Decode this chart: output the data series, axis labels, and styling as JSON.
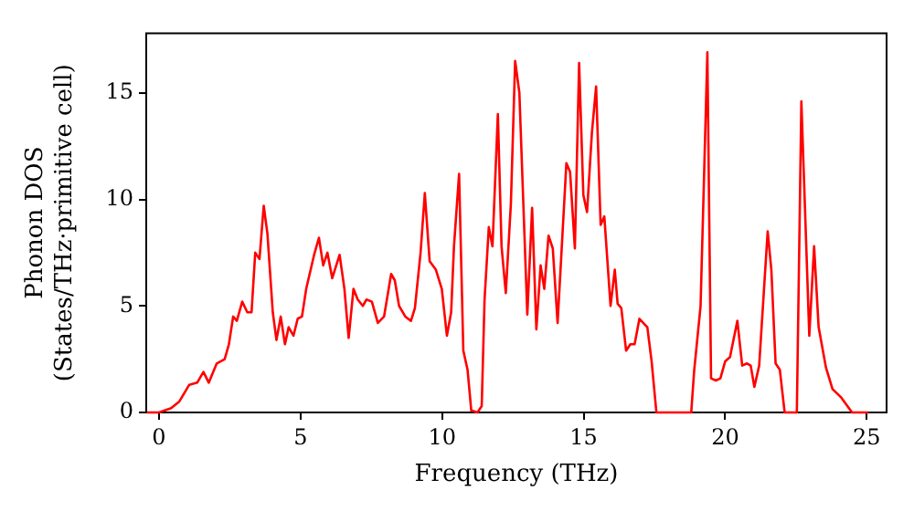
{
  "chart_data": {
    "type": "line",
    "xlabel": "Frequency (THz)",
    "ylabel": "Phonon DOS\n(States/THz·primitive cell)",
    "xlim": [
      -0.45,
      25.7
    ],
    "ylim": [
      0,
      17.8
    ],
    "xticks": [
      0,
      5,
      10,
      15,
      20,
      25
    ],
    "yticks": [
      0,
      5,
      10,
      15
    ],
    "grid": false,
    "legend": false,
    "marker": "none",
    "line_style": "solid",
    "series": [
      {
        "color": "#ff0000",
        "x": [
          -0.43,
          0,
          0.43,
          0.71,
          1.07,
          1.35,
          1.57,
          1.76,
          2.04,
          2.32,
          2.47,
          2.62,
          2.75,
          2.94,
          3.12,
          3.27,
          3.4,
          3.55,
          3.7,
          3.83,
          4.02,
          4.15,
          4.3,
          4.45,
          4.58,
          4.75,
          4.9,
          5.05,
          5.2,
          5.48,
          5.65,
          5.8,
          5.95,
          6.12,
          6.38,
          6.55,
          6.7,
          6.87,
          7.02,
          7.2,
          7.33,
          7.52,
          7.73,
          7.95,
          8.2,
          8.33,
          8.48,
          8.7,
          8.9,
          9.04,
          9.24,
          9.39,
          9.56,
          9.78,
          9.99,
          10.17,
          10.32,
          10.42,
          10.6,
          10.75,
          10.9,
          11.03,
          11.25,
          11.4,
          11.5,
          11.65,
          11.78,
          11.97,
          12.1,
          12.25,
          12.43,
          12.58,
          12.73,
          13.01,
          13.18,
          13.33,
          13.48,
          13.61,
          13.76,
          13.91,
          14.08,
          14.39,
          14.52,
          14.69,
          14.84,
          14.99,
          15.12,
          15.29,
          15.44,
          15.6,
          15.73,
          15.95,
          16.1,
          16.2,
          16.33,
          16.5,
          16.65,
          16.8,
          16.97,
          17.25,
          17.4,
          17.57,
          18.8,
          18.9,
          19.13,
          19.37,
          19.5,
          19.67,
          19.83,
          20.0,
          20.17,
          20.43,
          20.6,
          20.77,
          20.9,
          21.03,
          21.2,
          21.5,
          21.63,
          21.78,
          21.93,
          22.1,
          22.53,
          22.69,
          22.97,
          23.14,
          23.3,
          23.56,
          23.79,
          24.1,
          24.48,
          25.06
        ],
        "values": [
          0,
          0,
          0.2,
          0.5,
          1.3,
          1.4,
          1.9,
          1.4,
          2.3,
          2.5,
          3.2,
          4.5,
          4.3,
          5.2,
          4.7,
          4.7,
          7.5,
          7.2,
          9.7,
          8.4,
          4.7,
          3.4,
          4.5,
          3.2,
          4.0,
          3.6,
          4.4,
          4.5,
          5.8,
          7.4,
          8.2,
          6.9,
          7.5,
          6.3,
          7.4,
          5.8,
          3.5,
          5.8,
          5.3,
          5.0,
          5.3,
          5.2,
          4.2,
          4.5,
          6.5,
          6.2,
          5.0,
          4.5,
          4.3,
          4.9,
          7.5,
          10.3,
          7.1,
          6.7,
          5.8,
          3.6,
          4.7,
          7.8,
          11.2,
          2.9,
          2.0,
          0.1,
          0,
          0.3,
          5.3,
          8.7,
          7.8,
          14.0,
          7.8,
          5.6,
          9.8,
          16.5,
          15.0,
          4.6,
          9.6,
          3.9,
          6.9,
          5.8,
          8.3,
          7.7,
          4.2,
          11.7,
          11.3,
          7.7,
          16.4,
          10.2,
          9.4,
          13.1,
          15.3,
          8.8,
          9.2,
          5.0,
          6.7,
          5.1,
          4.9,
          2.9,
          3.2,
          3.2,
          4.4,
          4.0,
          2.4,
          0,
          0,
          1.9,
          5.0,
          16.9,
          1.6,
          1.5,
          1.6,
          2.4,
          2.6,
          4.3,
          2.2,
          2.3,
          2.2,
          1.2,
          2.2,
          8.5,
          6.7,
          2.3,
          2.0,
          0,
          0,
          14.6,
          3.6,
          7.8,
          4.0,
          2.1,
          1.1,
          0.7,
          0,
          0
        ]
      }
    ]
  }
}
